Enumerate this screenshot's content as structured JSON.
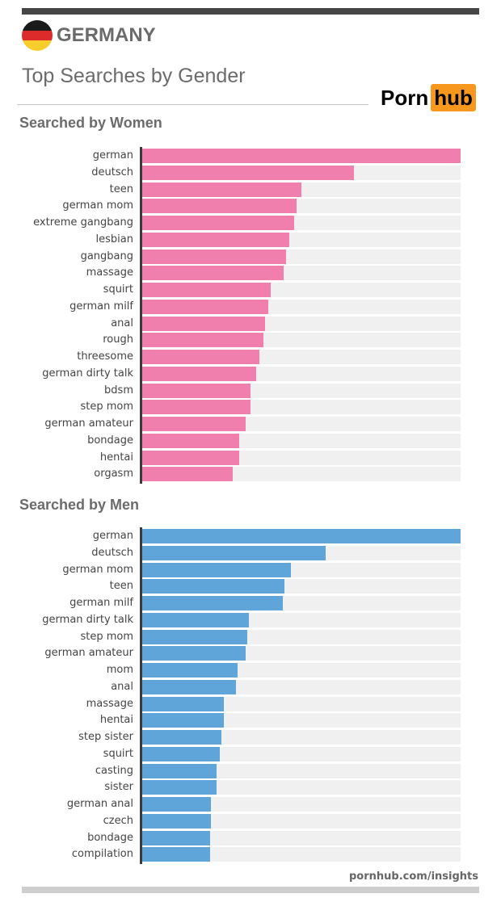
{
  "header": {
    "country": "GERMANY",
    "subtitle": "Top Searches by Gender",
    "logo_left": "Porn",
    "logo_right": "hub"
  },
  "footer": {
    "source": "pornhub.com/insights"
  },
  "colors": {
    "women": "#f07fad",
    "men": "#5fa5d9",
    "track": "#f0f0f0",
    "brand": "#f7971d"
  },
  "chart_data": [
    {
      "type": "bar",
      "orientation": "horizontal",
      "title": "Searched by Women",
      "xlim": [
        0,
        100
      ],
      "grid": false,
      "categories": [
        "german",
        "deutsch",
        "teen",
        "german mom",
        "extreme gangbang",
        "lesbian",
        "gangbang",
        "massage",
        "squirt",
        "german milf",
        "anal",
        "rough",
        "threesome",
        "german dirty talk",
        "bdsm",
        "step mom",
        "german amateur",
        "bondage",
        "hentai",
        "orgasm"
      ],
      "values": [
        100,
        66.6,
        50.1,
        48.6,
        47.6,
        46.3,
        45.3,
        44.3,
        40.3,
        39.5,
        38.5,
        38.0,
        36.7,
        35.9,
        33.9,
        33.9,
        32.4,
        30.4,
        30.4,
        28.4
      ]
    },
    {
      "type": "bar",
      "orientation": "horizontal",
      "title": "Searched by Men",
      "xlim": [
        0,
        100
      ],
      "grid": false,
      "categories": [
        "german",
        "deutsch",
        "german mom",
        "teen",
        "german milf",
        "german dirty talk",
        "step mom",
        "german amateur",
        "mom",
        "anal",
        "massage",
        "hentai",
        "step sister",
        "squirt",
        "casting",
        "sister",
        "german anal",
        "czech",
        "bondage",
        "compilation"
      ],
      "values": [
        100,
        57.5,
        46.8,
        44.6,
        44.1,
        33.4,
        32.9,
        32.4,
        29.9,
        29.4,
        25.6,
        25.6,
        24.8,
        24.3,
        23.3,
        23.3,
        21.5,
        21.5,
        21.3,
        21.3
      ]
    }
  ]
}
